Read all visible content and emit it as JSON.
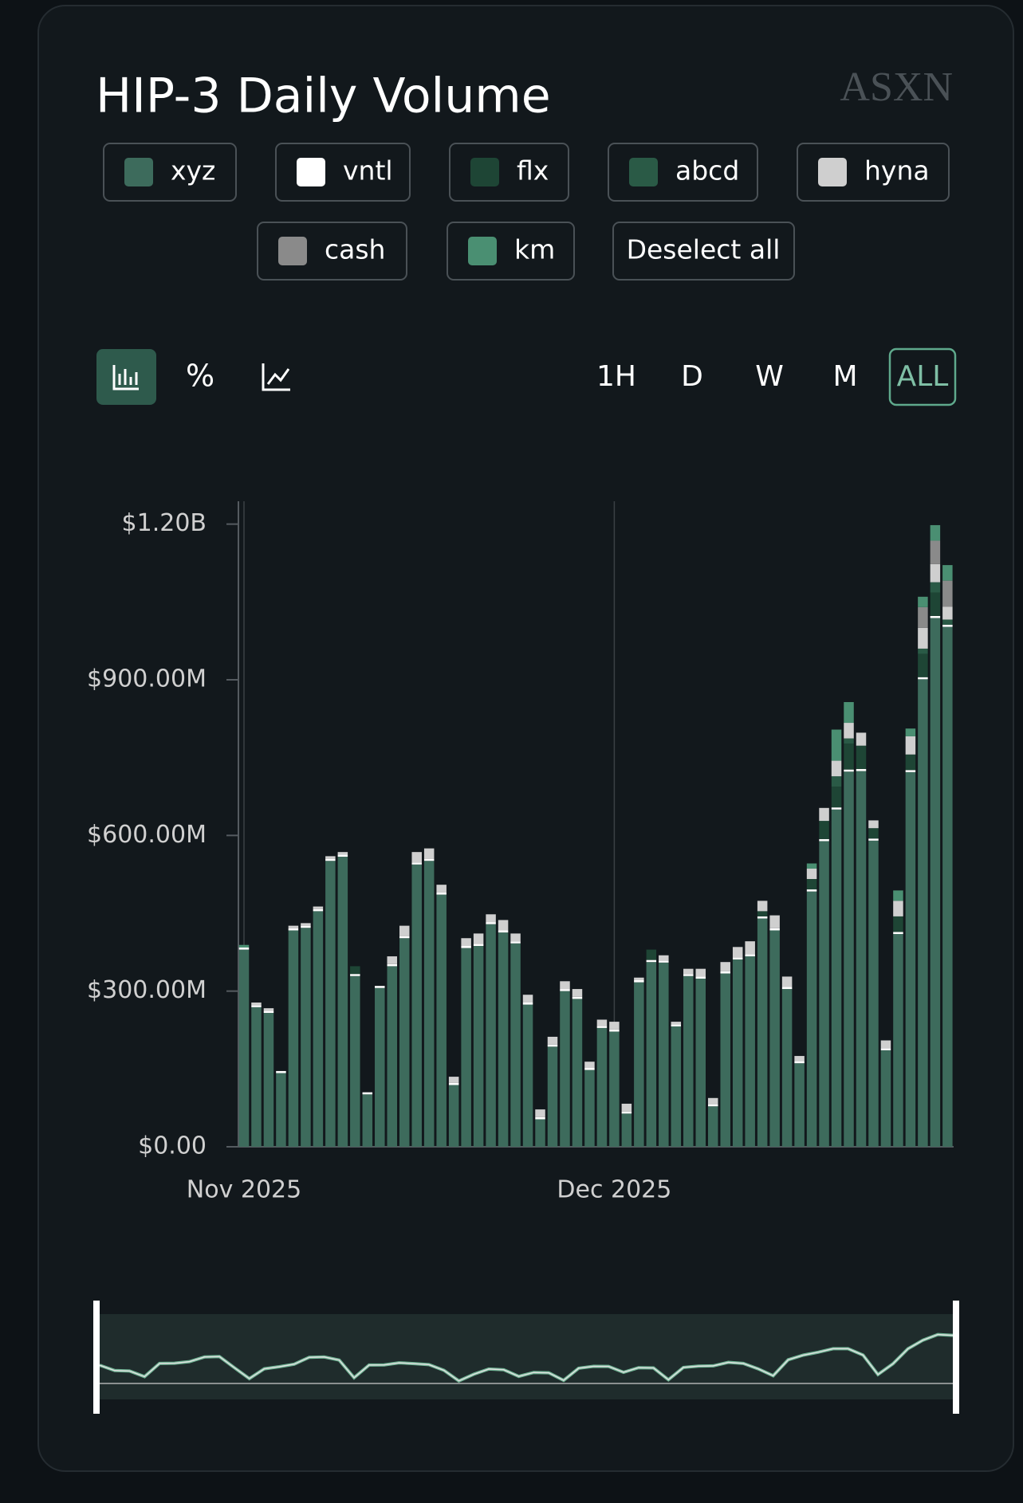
{
  "brand": "ASXN",
  "toolbar": {
    "modes": [
      "%"
    ],
    "ranges": [
      "1H",
      "D",
      "W",
      "M",
      "ALL"
    ],
    "deselect": "Deselect all"
  },
  "chart_data": {
    "type": "stacked_bar",
    "title": "HIP-3 Daily Volume",
    "categories": [
      "Nov 2025",
      null,
      null,
      null,
      null,
      null,
      null,
      null,
      null,
      null,
      null,
      null,
      null,
      null,
      null,
      null,
      null,
      null,
      null,
      null,
      null,
      null,
      null,
      null,
      null,
      null,
      null,
      null,
      null,
      null,
      "Dec 2025",
      null,
      null,
      null,
      null,
      null,
      null,
      null,
      null,
      null,
      null,
      null,
      null,
      null,
      null,
      null,
      null,
      null,
      null,
      null,
      null,
      null,
      null,
      null,
      null,
      null,
      null,
      null
    ],
    "series": [
      {
        "name": "xyz",
        "color": "#3d6b5c",
        "values": [
          380,
          269,
          258,
          142,
          417,
          422,
          454,
          551,
          559,
          329,
          101,
          306,
          348,
          402,
          544,
          551,
          486,
          119,
          383,
          387,
          429,
          413,
          392,
          274,
          53,
          193,
          300,
          285,
          148,
          229,
          222,
          64,
          317,
          356,
          355,
          232,
          329,
          324,
          78,
          334,
          361,
          367,
          440,
          417,
          304,
          161,
          492,
          589,
          650,
          723,
          724,
          590,
          186,
          410,
          722,
          901,
          1019,
          1002
        ]
      },
      {
        "name": "vntl",
        "color": "#ffffff",
        "values": [
          4,
          4,
          4,
          4,
          4,
          4,
          4,
          4,
          4,
          4,
          4,
          4,
          4,
          4,
          4,
          4,
          4,
          4,
          4,
          4,
          4,
          4,
          4,
          4,
          4,
          4,
          4,
          4,
          4,
          4,
          4,
          4,
          4,
          4,
          4,
          4,
          4,
          4,
          4,
          4,
          4,
          4,
          4,
          4,
          4,
          4,
          4,
          4,
          4,
          4,
          4,
          4,
          4,
          4,
          4,
          4,
          4,
          4
        ]
      },
      {
        "name": "flx",
        "color": "#1e4535",
        "values": [
          0,
          0,
          0,
          0,
          0,
          0,
          0,
          0,
          0,
          15,
          0,
          0,
          0,
          0,
          0,
          0,
          0,
          0,
          0,
          0,
          0,
          0,
          0,
          0,
          0,
          0,
          0,
          0,
          0,
          0,
          0,
          0,
          0,
          20,
          0,
          0,
          0,
          0,
          0,
          0,
          0,
          0,
          10,
          0,
          0,
          0,
          20,
          35,
          40,
          50,
          45,
          20,
          0,
          30,
          30,
          45,
          45,
          0
        ]
      },
      {
        "name": "abcd",
        "color": "#2a5a46",
        "values": [
          0,
          0,
          0,
          0,
          0,
          0,
          0,
          0,
          0,
          0,
          0,
          0,
          0,
          0,
          0,
          0,
          0,
          0,
          0,
          0,
          0,
          0,
          0,
          0,
          0,
          0,
          0,
          0,
          0,
          0,
          0,
          0,
          0,
          0,
          0,
          0,
          0,
          0,
          0,
          0,
          0,
          0,
          0,
          0,
          0,
          0,
          0,
          0,
          20,
          10,
          0,
          0,
          0,
          0,
          0,
          10,
          20,
          10
        ]
      },
      {
        "name": "hyna",
        "color": "#cfcfcf",
        "values": [
          0,
          5,
          5,
          0,
          5,
          5,
          5,
          5,
          5,
          0,
          0,
          0,
          15,
          20,
          20,
          20,
          15,
          12,
          15,
          20,
          15,
          20,
          15,
          15,
          15,
          15,
          15,
          15,
          12,
          12,
          15,
          15,
          5,
          0,
          10,
          5,
          10,
          15,
          12,
          18,
          20,
          25,
          20,
          25,
          20,
          10,
          20,
          25,
          30,
          30,
          25,
          15,
          15,
          30,
          35,
          40,
          35,
          25
        ]
      },
      {
        "name": "cash",
        "color": "#8a8a8a",
        "values": [
          0,
          0,
          0,
          0,
          0,
          0,
          0,
          0,
          0,
          0,
          0,
          0,
          0,
          0,
          0,
          0,
          0,
          0,
          0,
          0,
          0,
          0,
          0,
          0,
          0,
          0,
          0,
          0,
          0,
          0,
          0,
          0,
          0,
          0,
          0,
          0,
          0,
          0,
          0,
          0,
          0,
          0,
          0,
          0,
          0,
          0,
          0,
          0,
          0,
          0,
          0,
          0,
          0,
          0,
          0,
          40,
          45,
          50
        ]
      },
      {
        "name": "km",
        "color": "#4a8f72",
        "values": [
          5,
          0,
          0,
          0,
          0,
          0,
          0,
          0,
          0,
          0,
          0,
          0,
          0,
          0,
          0,
          0,
          0,
          0,
          0,
          0,
          0,
          0,
          0,
          0,
          0,
          0,
          0,
          0,
          0,
          0,
          0,
          0,
          0,
          0,
          0,
          0,
          0,
          0,
          0,
          0,
          0,
          0,
          0,
          0,
          0,
          0,
          10,
          0,
          60,
          40,
          0,
          0,
          0,
          20,
          15,
          20,
          30,
          30
        ]
      }
    ],
    "ylim": [
      0,
      1244
    ],
    "yticks": [
      {
        "value": 0,
        "label": "$0.00"
      },
      {
        "value": 300,
        "label": "$300.00M"
      },
      {
        "value": 600,
        "label": "$600.00M"
      },
      {
        "value": 900,
        "label": "$900.00M"
      },
      {
        "value": 1200,
        "label": "$1.20B"
      }
    ]
  }
}
